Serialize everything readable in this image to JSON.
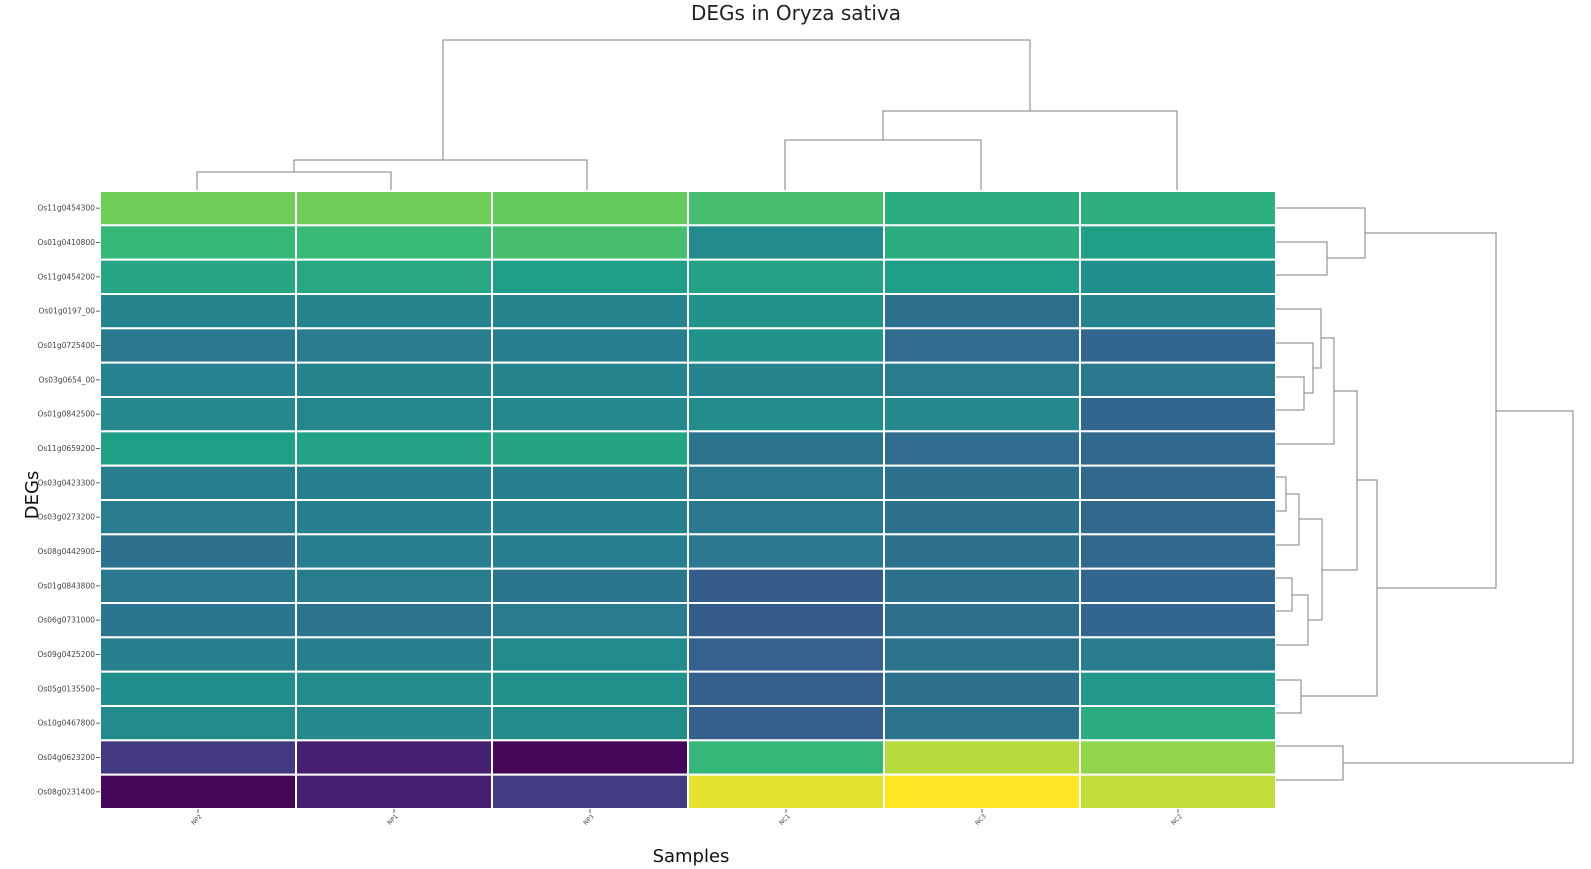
{
  "chart_data": {
    "type": "heatmap",
    "title": "DEGs in Oryza sativa",
    "xlabel": "Samples",
    "ylabel": "DEGs",
    "colorscale": "viridis",
    "columns": [
      "NP2",
      "NP1",
      "NP3",
      "NC1",
      "NC3",
      "NC2"
    ],
    "rows": [
      "Os11g0454300",
      "Os01g0410800",
      "Os11g0454200",
      "Os01g0197_00",
      "Os01g0725400",
      "Os03g0654_00",
      "Os01g0842500",
      "Os11g0659200",
      "Os03g0423300",
      "Os03g0273200",
      "Os08g0442900",
      "Os01g0843800",
      "Os06g0731000",
      "Os09g0425200",
      "Os05g0135500",
      "Os10g0467800",
      "Os04g0623200",
      "Os08g0231400"
    ],
    "values": [
      [
        0.88,
        0.88,
        0.86,
        0.79,
        0.7,
        0.71
      ],
      [
        0.75,
        0.76,
        0.79,
        0.54,
        0.7,
        0.64
      ],
      [
        0.67,
        0.68,
        0.63,
        0.65,
        0.63,
        0.56
      ],
      [
        0.51,
        0.51,
        0.51,
        0.58,
        0.41,
        0.51
      ],
      [
        0.46,
        0.47,
        0.48,
        0.58,
        0.4,
        0.37
      ],
      [
        0.5,
        0.51,
        0.51,
        0.51,
        0.47,
        0.46
      ],
      [
        0.53,
        0.52,
        0.53,
        0.55,
        0.53,
        0.37
      ],
      [
        0.64,
        0.65,
        0.66,
        0.43,
        0.4,
        0.38
      ],
      [
        0.48,
        0.49,
        0.49,
        0.45,
        0.42,
        0.38
      ],
      [
        0.47,
        0.49,
        0.49,
        0.46,
        0.42,
        0.38
      ],
      [
        0.42,
        0.48,
        0.48,
        0.45,
        0.42,
        0.38
      ],
      [
        0.46,
        0.47,
        0.44,
        0.33,
        0.42,
        0.37
      ],
      [
        0.44,
        0.43,
        0.47,
        0.33,
        0.41,
        0.37
      ],
      [
        0.49,
        0.49,
        0.54,
        0.35,
        0.43,
        0.47
      ],
      [
        0.56,
        0.55,
        0.57,
        0.34,
        0.42,
        0.6
      ],
      [
        0.54,
        0.53,
        0.55,
        0.34,
        0.43,
        0.69
      ],
      [
        0.19,
        0.1,
        0.02,
        0.75,
        0.94,
        0.91
      ],
      [
        0.02,
        0.1,
        0.2,
        0.98,
        1.0,
        0.95
      ]
    ]
  }
}
